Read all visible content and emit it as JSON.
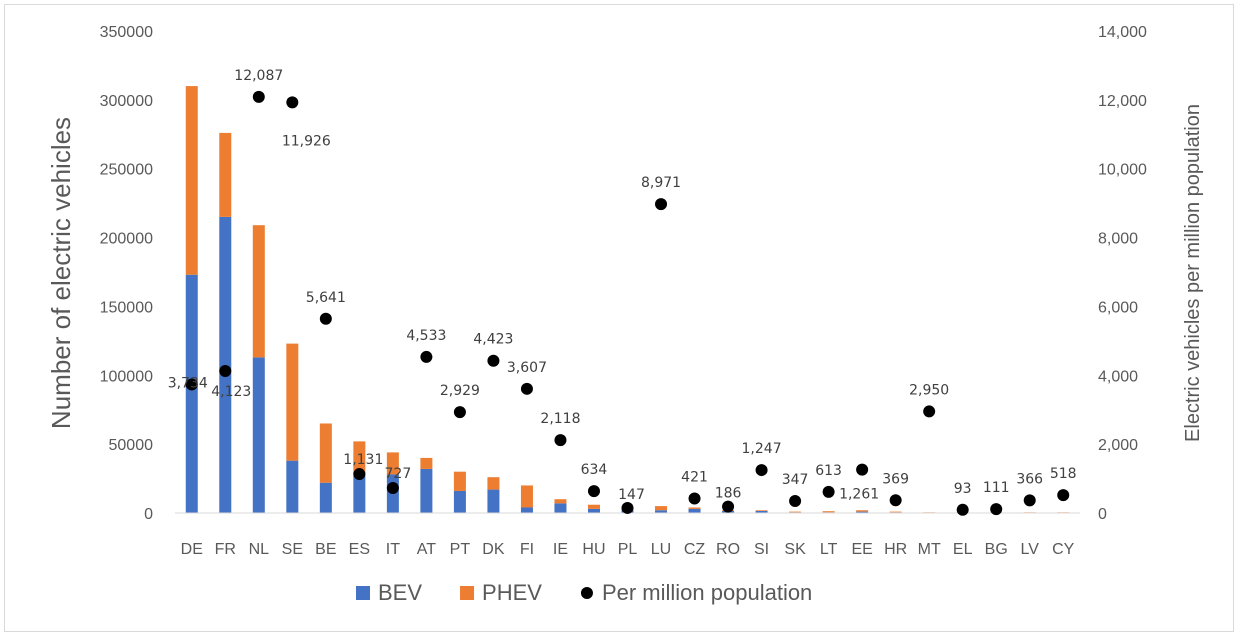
{
  "chart_data": {
    "type": "bar",
    "stacked": true,
    "categories": [
      "DE",
      "FR",
      "NL",
      "SE",
      "BE",
      "ES",
      "IT",
      "AT",
      "PT",
      "DK",
      "FI",
      "IE",
      "HU",
      "PL",
      "LU",
      "CZ",
      "RO",
      "SI",
      "SK",
      "LT",
      "EE",
      "HR",
      "MT",
      "EL",
      "BG",
      "LV",
      "CY"
    ],
    "series": [
      {
        "name": "BEV",
        "color": "#4472C4",
        "axis": "left",
        "values": [
          173000,
          215000,
          113000,
          38000,
          22000,
          30000,
          28000,
          32000,
          16000,
          17000,
          4000,
          7000,
          3000,
          1500,
          2000,
          3000,
          1500,
          1500,
          500,
          500,
          1000,
          500,
          200,
          200,
          200,
          200,
          200
        ]
      },
      {
        "name": "PHEV",
        "color": "#ED7D31",
        "axis": "left",
        "values": [
          137000,
          61000,
          96000,
          85000,
          43000,
          22000,
          16000,
          8000,
          14000,
          9000,
          16000,
          3000,
          3000,
          1500,
          3000,
          1000,
          500,
          500,
          500,
          800,
          1000,
          500,
          300,
          300,
          300,
          300,
          300
        ]
      },
      {
        "name": "Per million population",
        "color": "#000000",
        "axis": "right",
        "marker": "circle",
        "values": [
          3734,
          4123,
          12087,
          11926,
          5641,
          1131,
          727,
          4533,
          2929,
          4423,
          3607,
          2118,
          634,
          147,
          8971,
          421,
          186,
          1247,
          347,
          613,
          1261,
          369,
          2950,
          93,
          111,
          366,
          518
        ],
        "labels": [
          "3,734",
          "4,123",
          "12,087",
          "11,926",
          "5,641",
          "1,131",
          "727",
          "4,533",
          "2,929",
          "4,423",
          "3,607",
          "2,118",
          "634",
          "147",
          "8,971",
          "421",
          "186",
          "1,247",
          "347",
          "613",
          "1,261",
          "369",
          "2,950",
          "93",
          "111",
          "366",
          "518"
        ]
      }
    ],
    "ylabel": "Number of electric vehicles",
    "y2label": "Electric vehicles per million population",
    "ylim": [
      0,
      350000
    ],
    "y2lim": [
      0,
      14000
    ],
    "yticks": [
      "0",
      "50000",
      "100000",
      "150000",
      "200000",
      "250000",
      "300000",
      "350000"
    ],
    "y2ticks": [
      "0",
      "2,000",
      "4,000",
      "6,000",
      "8,000",
      "10,000",
      "12,000",
      "14,000"
    ],
    "grid": false,
    "legend": "bottom"
  }
}
